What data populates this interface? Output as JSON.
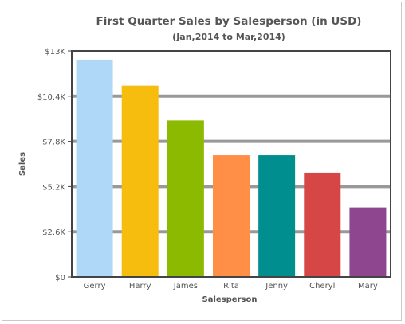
{
  "chart_data": {
    "type": "bar",
    "title": "First Quarter Sales by Salesperson (in USD)",
    "subtitle": "(Jan,2014 to Mar,2014)",
    "xlabel": "Salesperson",
    "ylabel": "Sales",
    "ylim": [
      0,
      13000
    ],
    "y_ticks": [
      0,
      2600,
      5200,
      7800,
      10400,
      13000
    ],
    "y_tick_labels": [
      "$0",
      "$2.6K",
      "$5.2K",
      "$7.8K",
      "$10.4K",
      "$13K"
    ],
    "grid": true,
    "categories": [
      "Gerry",
      "Harry",
      "James",
      "Rita",
      "Jenny",
      "Cheryl",
      "Mary"
    ],
    "values": [
      12500,
      11000,
      9000,
      7000,
      7000,
      6000,
      4000
    ],
    "colors": [
      "#afd8f8",
      "#f6bd0f",
      "#8bba00",
      "#ff8e46",
      "#008e8e",
      "#d64646",
      "#8e468e"
    ]
  }
}
